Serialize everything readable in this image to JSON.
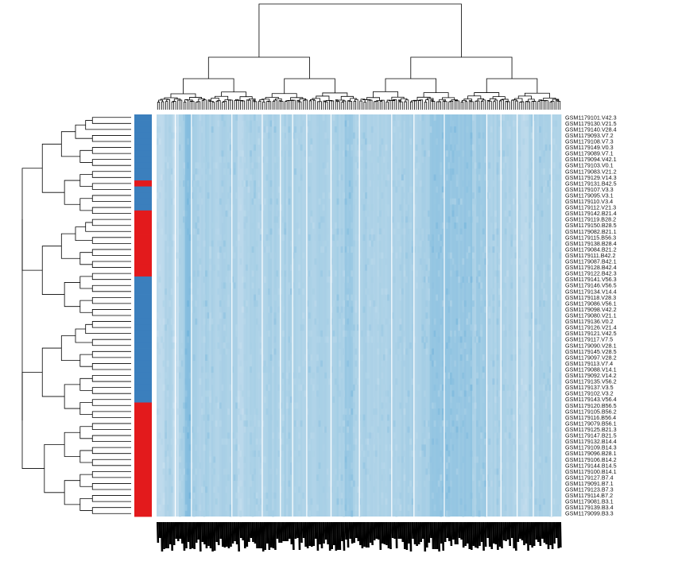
{
  "chart_data": {
    "type": "heatmap",
    "title": "",
    "xlabel": "",
    "ylabel": "",
    "rows": [
      "GSM1179101.V42.3",
      "GSM1179130.V21.5",
      "GSM1179140.V28.4",
      "GSM1179093.V7.2",
      "GSM1179108.V7.3",
      "GSM1179149.V0.3",
      "GSM1179089.V7.1",
      "GSM1179094.V42.1",
      "GSM1179103.V0.1",
      "GSM1179083.V21.2",
      "GSM1179129.V14.3",
      "GSM1179131.B42.5",
      "GSM1179107.V3.3",
      "GSM1179095.V3.1",
      "GSM1179110.V3.4",
      "GSM1179112.V21.3",
      "GSM1179142.B21.4",
      "GSM1179119.B28.2",
      "GSM1179150.B28.5",
      "GSM1179082.B21.1",
      "GSM1179115.B56.3",
      "GSM1179138.B28.4",
      "GSM1179084.B21.2",
      "GSM1179111.B42.2",
      "GSM1179087.B42.1",
      "GSM1179128.B42.4",
      "GSM1179122.B42.3",
      "GSM1179141.V56.3",
      "GSM1179146.V56.5",
      "GSM1179134.V14.4",
      "GSM1179118.V28.3",
      "GSM1179086.V56.1",
      "GSM1179098.V42.2",
      "GSM1179080.V21.1",
      "GSM1179136.V0.2",
      "GSM1179126.V21.4",
      "GSM1179121.V42.5",
      "GSM1179117.V7.5",
      "GSM1179090.V28.1",
      "GSM1179145.V28.5",
      "GSM1179097.V28.2",
      "GSM1179113.V7.4",
      "GSM1179088.V14.1",
      "GSM1179092.V14.2",
      "GSM1179135.V56.2",
      "GSM1179137.V3.5",
      "GSM1179102.V3.2",
      "GSM1179143.V56.4",
      "GSM1179120.B56.5",
      "GSM1179105.B56.2",
      "GSM1179116.B56.4",
      "GSM1179079.B56.1",
      "GSM1179125.B21.3",
      "GSM1179147.B21.5",
      "GSM1179132.B14.4",
      "GSM1179109.B14.3",
      "GSM1179096.B28.1",
      "GSM1179106.B14.2",
      "GSM1179144.B14.5",
      "GSM1179100.B14.1",
      "GSM1179127.B7.4",
      "GSM1179091.B7.1",
      "GSM1179123.B7.3",
      "GSM1179114.B7.2",
      "GSM1179081.B3.1",
      "GSM1179139.B3.4",
      "GSM1179099.B3.3"
    ],
    "row_groups": [
      "V",
      "V",
      "V",
      "V",
      "V",
      "V",
      "V",
      "V",
      "V",
      "V",
      "V",
      "B",
      "V",
      "V",
      "V",
      "V",
      "B",
      "B",
      "B",
      "B",
      "B",
      "B",
      "B",
      "B",
      "B",
      "B",
      "B",
      "V",
      "V",
      "V",
      "V",
      "V",
      "V",
      "V",
      "V",
      "V",
      "V",
      "V",
      "V",
      "V",
      "V",
      "V",
      "V",
      "V",
      "V",
      "V",
      "V",
      "V",
      "B",
      "B",
      "B",
      "B",
      "B",
      "B",
      "B",
      "B",
      "B",
      "B",
      "B",
      "B",
      "B",
      "B",
      "B",
      "B",
      "B",
      "B",
      "B"
    ],
    "group_colors": {
      "V": "#3b7fbd",
      "B": "#e31a1c"
    },
    "column_count": 200,
    "column_labels_legible": false,
    "color_scale": {
      "low": "#c9e0ef",
      "mid": "#a9d0e6",
      "high": "#6db1da"
    },
    "row_dendrogram": true,
    "column_dendrogram": true,
    "legend": "none",
    "grid": false
  }
}
